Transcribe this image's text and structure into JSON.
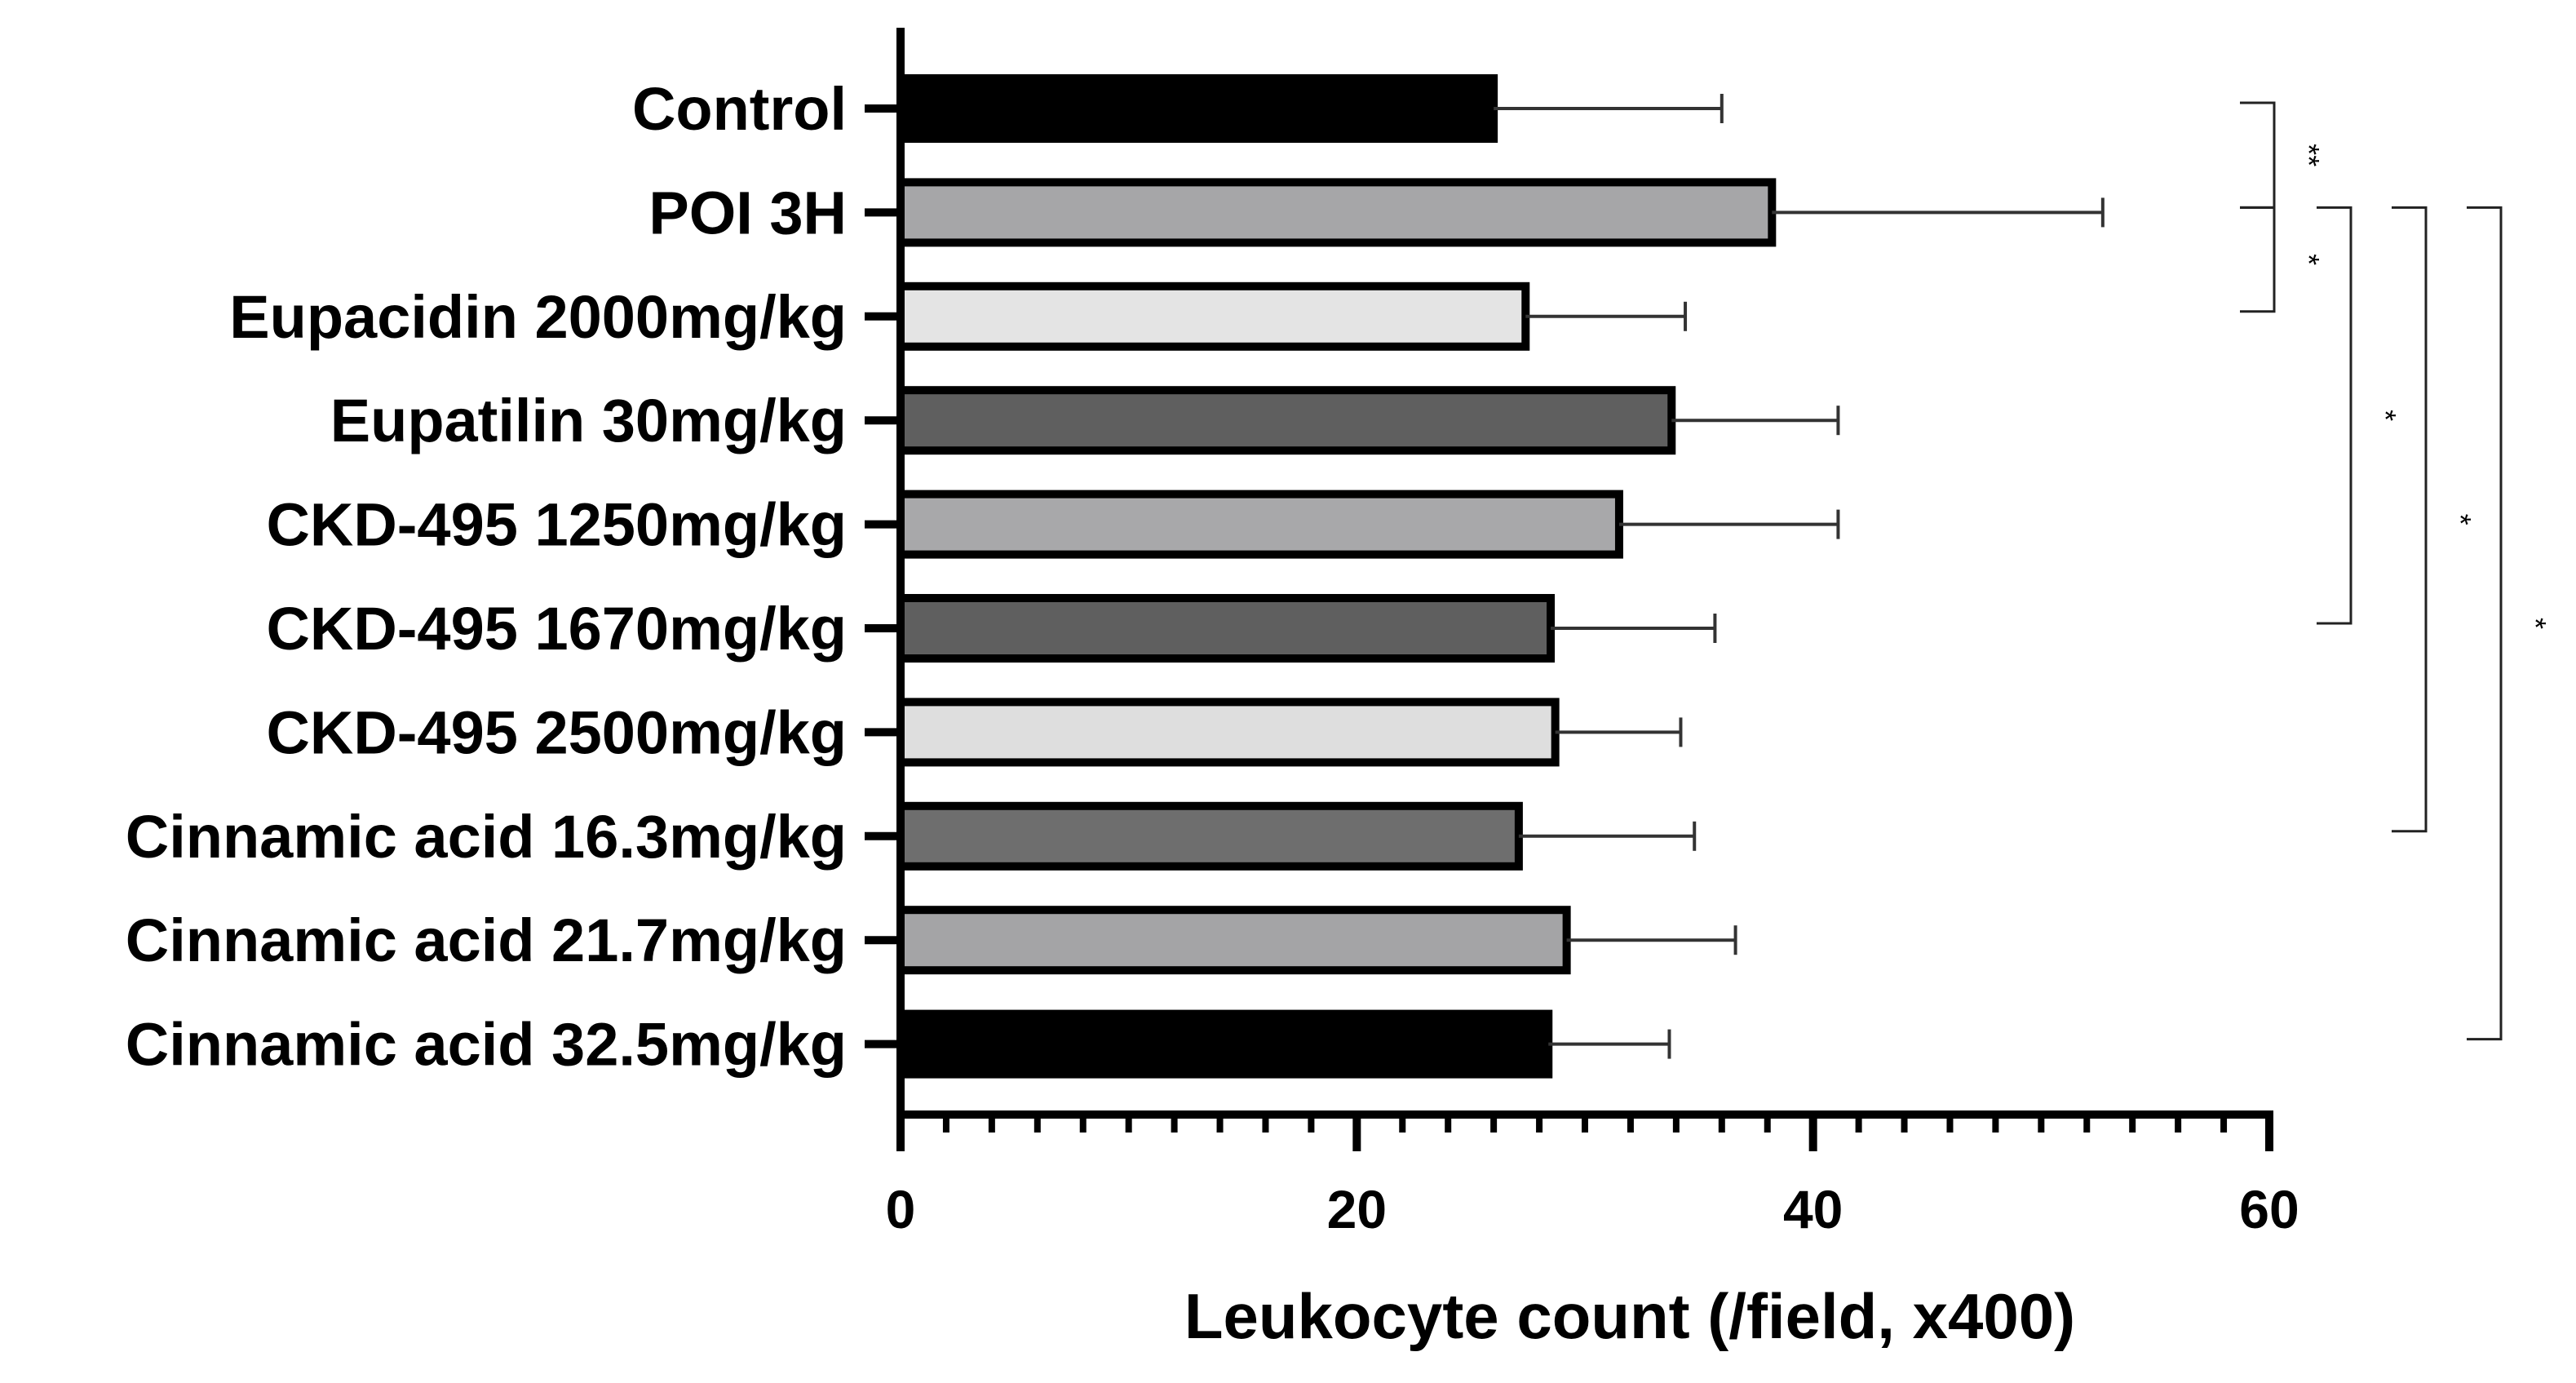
{
  "chart_data": {
    "type": "bar",
    "orientation": "horizontal",
    "categories": [
      "Control",
      "POI 3H",
      "Eupacidin 2000mg/kg",
      "Eupatilin 30mg/kg",
      "CKD-495 1250mg/kg",
      "CKD-495 1670mg/kg",
      "CKD-495 2500mg/kg",
      "Cinnamic acid 16.3mg/kg",
      "Cinnamic acid 21.7mg/kg",
      "Cinnamic acid 32.5mg/kg"
    ],
    "values": [
      26,
      38.2,
      27.4,
      33.8,
      31.5,
      28.5,
      28.7,
      27.1,
      29.2,
      28.4
    ],
    "errors": [
      10,
      14.5,
      7,
      7.3,
      9.6,
      7.2,
      5.5,
      7.7,
      7.4,
      5.3
    ],
    "fill_colors": [
      "#000000",
      "#a6a6a8",
      "#e4e4e4",
      "#5f5f5f",
      "#a8a8aa",
      "#5f5f5f",
      "#dedede",
      "#6e6e6e",
      "#a4a4a6",
      "#000000"
    ],
    "xlabel": "Leukocyte count (/field, x400)",
    "ylabel": "",
    "xlim": [
      0,
      60
    ],
    "xticks": [
      0,
      20,
      40,
      60
    ],
    "minor_tick_step": 2,
    "grid": false,
    "significance": [
      {
        "from_index": 0,
        "to_index": 1,
        "label": "**",
        "level": 1
      },
      {
        "from_index": 1,
        "to_index": 2,
        "label": "*",
        "level": 1
      },
      {
        "from_index": 1,
        "to_index": 5,
        "label": "*",
        "level": 2
      },
      {
        "from_index": 1,
        "to_index": 7,
        "label": "*",
        "level": 3
      },
      {
        "from_index": 1,
        "to_index": 9,
        "label": "*",
        "level": 4
      }
    ]
  }
}
